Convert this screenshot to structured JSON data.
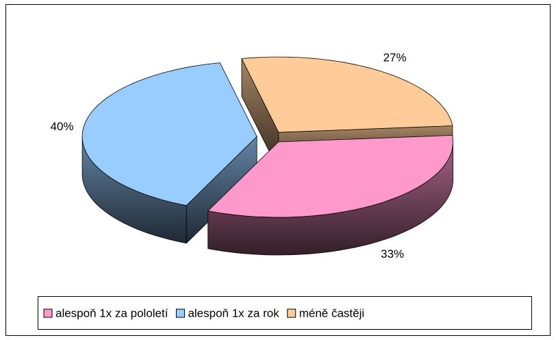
{
  "chart_data": {
    "type": "pie",
    "categories": [
      "alespoň 1x za pololetí",
      "alespoň 1x za rok",
      "méně častěji"
    ],
    "values": [
      33,
      40,
      27
    ],
    "value_labels": [
      "33%",
      "40%",
      "27%"
    ],
    "colors": [
      "#ff99cc",
      "#99ccff",
      "#ffcc99"
    ],
    "legend": "bottom"
  }
}
